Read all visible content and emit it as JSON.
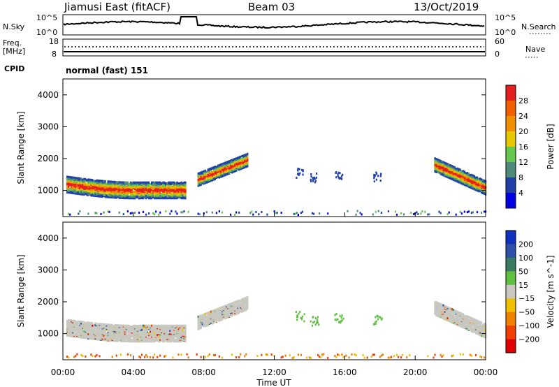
{
  "header": {
    "station": "Jiamusi East (fitACF)",
    "beam": "Beam 03",
    "date": "13/Oct/2019"
  },
  "noise_panel": {
    "left_label": "N.Sky",
    "right_label": "N.Search",
    "left_ticks": [
      "10^5",
      "10^0"
    ],
    "right_ticks": [
      "10^5",
      "10^0"
    ]
  },
  "freq_panel": {
    "left_label_1": "Freq.",
    "left_label_2": "[MHz]",
    "right_label": "Nave",
    "left_ticks": [
      "18",
      "8"
    ],
    "right_ticks": [
      "60",
      "0"
    ],
    "cpid_label": "CPID",
    "mode_text": "normal (fast) 151"
  },
  "chart_data": [
    {
      "type": "heatmap",
      "title": "",
      "xlabel": "Time UT",
      "ylabel": "Slant Range [km]",
      "x_ticks": [
        "00:00",
        "04:00",
        "08:00",
        "12:00",
        "16:00",
        "20:00",
        "00:00"
      ],
      "y_ticks": [
        "1000",
        "2000",
        "3000",
        "4000"
      ],
      "ylim": [
        180,
        4500
      ],
      "colorbar": {
        "label": "Power [dB]",
        "ticks": [
          "4",
          "8",
          "12",
          "16",
          "20",
          "24",
          "28"
        ],
        "colors": [
          "#0000e0",
          "#2040a8",
          "#4f8a7a",
          "#64c850",
          "#e6c800",
          "#f09000",
          "#f06000",
          "#e52020"
        ]
      }
    },
    {
      "type": "heatmap",
      "title": "",
      "xlabel": "Time UT",
      "ylabel": "Slant Range [km]",
      "x_ticks": [
        "00:00",
        "04:00",
        "08:00",
        "12:00",
        "16:00",
        "20:00",
        "00:00"
      ],
      "y_ticks": [
        "1000",
        "2000",
        "3000",
        "4000"
      ],
      "ylim": [
        180,
        4500
      ],
      "colorbar": {
        "label": "Velocity [m s^-1]",
        "ticks": [
          "200",
          "100",
          "50",
          "15",
          "−15",
          "−50",
          "−100",
          "−200"
        ],
        "colors": [
          "#1030c0",
          "#3050a8",
          "#3a7a60",
          "#60c040",
          "#c8c8c0",
          "#f0c000",
          "#f08000",
          "#f04000",
          "#e00000"
        ]
      }
    }
  ],
  "xaxis_title": "Time UT"
}
